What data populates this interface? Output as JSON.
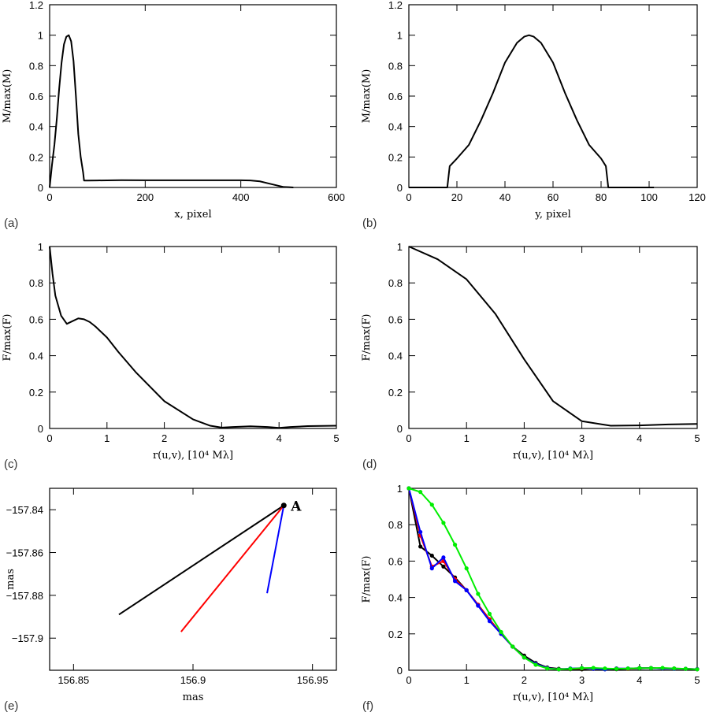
{
  "chart_data": [
    {
      "panel": "(a)",
      "type": "line",
      "xlabel": "x, pixel",
      "ylabel": "M/max(M)",
      "xlim": [
        0,
        600
      ],
      "ylim": [
        0,
        1.2
      ],
      "xticks": [
        "0",
        "200",
        "400",
        "600"
      ],
      "yticks": [
        "0",
        "0.2",
        "0.4",
        "0.6",
        "0.8",
        "1",
        "1.2"
      ],
      "series": [
        {
          "color": "#000000",
          "x": [
            0,
            5,
            10,
            15,
            20,
            25,
            30,
            35,
            40,
            45,
            50,
            55,
            60,
            65,
            70,
            72,
            75,
            80,
            100,
            150,
            200,
            300,
            400,
            420,
            440,
            460,
            480,
            490,
            500,
            510
          ],
          "y": [
            0,
            0.15,
            0.28,
            0.45,
            0.65,
            0.82,
            0.94,
            0.99,
            1.0,
            0.96,
            0.83,
            0.6,
            0.35,
            0.2,
            0.1,
            0.045,
            0.045,
            0.045,
            0.046,
            0.048,
            0.047,
            0.047,
            0.047,
            0.046,
            0.04,
            0.025,
            0.01,
            0.003,
            0.002,
            0.0
          ]
        }
      ]
    },
    {
      "panel": "(b)",
      "type": "line",
      "xlabel": "y, pixel",
      "ylabel": "M/max(M)",
      "xlim": [
        0,
        120
      ],
      "ylim": [
        0,
        1.2
      ],
      "xticks": [
        "0",
        "20",
        "40",
        "60",
        "80",
        "100",
        "120"
      ],
      "yticks": [
        "0",
        "0.2",
        "0.4",
        "0.6",
        "0.8",
        "1",
        "1.2"
      ],
      "series": [
        {
          "color": "#000000",
          "x": [
            0,
            16,
            17,
            20,
            25,
            30,
            35,
            40,
            45,
            48,
            50,
            52,
            55,
            60,
            65,
            70,
            75,
            80,
            82,
            83,
            90,
            100,
            102
          ],
          "y": [
            0,
            0.0,
            0.14,
            0.19,
            0.28,
            0.44,
            0.62,
            0.82,
            0.95,
            0.99,
            1.0,
            0.99,
            0.95,
            0.82,
            0.62,
            0.44,
            0.28,
            0.19,
            0.14,
            0.0,
            0.0,
            0.0,
            0.0
          ]
        }
      ]
    },
    {
      "panel": "(c)",
      "type": "line",
      "xlabel": "r(u,v), [10⁴ Mλ]",
      "ylabel": "F/max(F)",
      "xlim": [
        0,
        5
      ],
      "ylim": [
        0,
        1
      ],
      "xticks": [
        "0",
        "1",
        "2",
        "3",
        "4",
        "5"
      ],
      "yticks": [
        "0",
        "0.2",
        "0.4",
        "0.6",
        "0.8",
        "1"
      ],
      "series": [
        {
          "color": "#000000",
          "x": [
            0,
            0.05,
            0.1,
            0.2,
            0.3,
            0.4,
            0.5,
            0.6,
            0.7,
            0.8,
            1.0,
            1.2,
            1.5,
            2.0,
            2.5,
            2.8,
            3.0,
            3.2,
            3.5,
            3.8,
            4.0,
            4.2,
            4.5,
            5.0
          ],
          "y": [
            1.0,
            0.85,
            0.73,
            0.62,
            0.575,
            0.59,
            0.605,
            0.6,
            0.585,
            0.56,
            0.5,
            0.42,
            0.31,
            0.15,
            0.05,
            0.015,
            0.005,
            0.008,
            0.012,
            0.008,
            0.003,
            0.008,
            0.013,
            0.015
          ]
        }
      ]
    },
    {
      "panel": "(d)",
      "type": "line",
      "xlabel": "r(u,v), [10⁴ Mλ]",
      "ylabel": "F/max(F)",
      "xlim": [
        0,
        5
      ],
      "ylim": [
        0,
        1
      ],
      "xticks": [
        "0",
        "1",
        "2",
        "3",
        "4",
        "5"
      ],
      "yticks": [
        "0",
        "0.2",
        "0.4",
        "0.6",
        "0.8",
        "1"
      ],
      "series": [
        {
          "color": "#000000",
          "x": [
            0,
            0.5,
            1.0,
            1.5,
            2.0,
            2.5,
            3.0,
            3.5,
            4.0,
            4.5,
            5.0
          ],
          "y": [
            1.0,
            0.93,
            0.82,
            0.63,
            0.38,
            0.15,
            0.04,
            0.015,
            0.017,
            0.022,
            0.025
          ]
        }
      ]
    },
    {
      "panel": "(e)",
      "type": "line",
      "xlabel": "mas",
      "ylabel": "mas",
      "xlim": [
        156.84,
        156.96
      ],
      "ylim": [
        -157.915,
        -157.83
      ],
      "xticks": [
        "156.85",
        "156.9",
        "156.95"
      ],
      "yticks": [
        "−157.84",
        "−157.86",
        "−157.88",
        "−157.9"
      ],
      "point": {
        "label": "A",
        "x": 156.938,
        "y": -157.838
      },
      "series": [
        {
          "color": "#000000",
          "x": [
            156.869,
            156.938
          ],
          "y": [
            -157.889,
            -157.838
          ]
        },
        {
          "color": "#ff0000",
          "x": [
            156.895,
            156.938
          ],
          "y": [
            -157.897,
            -157.838
          ]
        },
        {
          "color": "#0000ff",
          "x": [
            156.931,
            156.938
          ],
          "y": [
            -157.879,
            -157.838
          ]
        }
      ]
    },
    {
      "panel": "(f)",
      "type": "line",
      "xlabel": "r(u,v), [10⁴ Mλ]",
      "ylabel": "F/max(F)",
      "xlim": [
        0,
        5
      ],
      "ylim": [
        0,
        1
      ],
      "xticks": [
        "0",
        "1",
        "2",
        "3",
        "4",
        "5"
      ],
      "yticks": [
        "0",
        "0.2",
        "0.4",
        "0.6",
        "0.8",
        "1"
      ],
      "series": [
        {
          "color": "#000000",
          "markers": true,
          "x": [
            0,
            0.2,
            0.4,
            0.6,
            0.8,
            1.0,
            1.2,
            1.4,
            1.6,
            1.8,
            2.0,
            2.2,
            2.4,
            2.6,
            2.8,
            3.0,
            3.2,
            3.4,
            3.6,
            3.8,
            4.0,
            4.2,
            4.4,
            4.6,
            4.8,
            5.0
          ],
          "y": [
            1.0,
            0.68,
            0.63,
            0.57,
            0.51,
            0.44,
            0.36,
            0.28,
            0.2,
            0.13,
            0.08,
            0.04,
            0.015,
            0.008,
            0.006,
            0.005,
            0.01,
            0.008,
            0.006,
            0.008,
            0.01,
            0.012,
            0.01,
            0.01,
            0.008,
            0.006
          ]
        },
        {
          "color": "#ff0000",
          "markers": true,
          "x": [
            0,
            0.2,
            0.4,
            0.6,
            0.8,
            1.0,
            1.2,
            1.4,
            1.6,
            1.8,
            2.0,
            2.2,
            2.4,
            2.6,
            2.8,
            3.0,
            3.2,
            3.4,
            3.6,
            3.8,
            4.0,
            4.2,
            4.4,
            4.6,
            4.8,
            5.0
          ],
          "y": [
            1.0,
            0.74,
            0.57,
            0.6,
            0.5,
            0.44,
            0.36,
            0.28,
            0.2,
            0.13,
            0.07,
            0.035,
            0.012,
            0.005,
            0.008,
            0.01,
            0.008,
            0.006,
            0.01,
            0.008,
            0.012,
            0.012,
            0.01,
            0.008,
            0.008,
            0.006
          ]
        },
        {
          "color": "#0000ff",
          "markers": true,
          "x": [
            0,
            0.2,
            0.4,
            0.6,
            0.8,
            1.0,
            1.2,
            1.4,
            1.6,
            1.8,
            2.0,
            2.2,
            2.4,
            2.6,
            2.8,
            3.0,
            3.2,
            3.4,
            3.6,
            3.8,
            4.0,
            4.2,
            4.4,
            4.6,
            4.8,
            5.0
          ],
          "y": [
            1.0,
            0.76,
            0.56,
            0.62,
            0.49,
            0.44,
            0.355,
            0.27,
            0.2,
            0.13,
            0.07,
            0.035,
            0.012,
            0.005,
            0.01,
            0.012,
            0.008,
            0.005,
            0.01,
            0.01,
            0.012,
            0.012,
            0.01,
            0.008,
            0.008,
            0.006
          ]
        },
        {
          "color": "#00ee00",
          "markers": true,
          "x": [
            0,
            0.2,
            0.4,
            0.6,
            0.8,
            1.0,
            1.2,
            1.4,
            1.6,
            1.8,
            2.0,
            2.2,
            2.4,
            2.6,
            2.8,
            3.0,
            3.2,
            3.4,
            3.6,
            3.8,
            4.0,
            4.2,
            4.4,
            4.6,
            4.8,
            5.0
          ],
          "y": [
            1.0,
            0.98,
            0.91,
            0.81,
            0.69,
            0.56,
            0.42,
            0.31,
            0.21,
            0.13,
            0.07,
            0.03,
            0.01,
            0.005,
            0.008,
            0.012,
            0.013,
            0.01,
            0.008,
            0.01,
            0.012,
            0.012,
            0.013,
            0.01,
            0.008,
            0.005
          ]
        }
      ]
    }
  ]
}
